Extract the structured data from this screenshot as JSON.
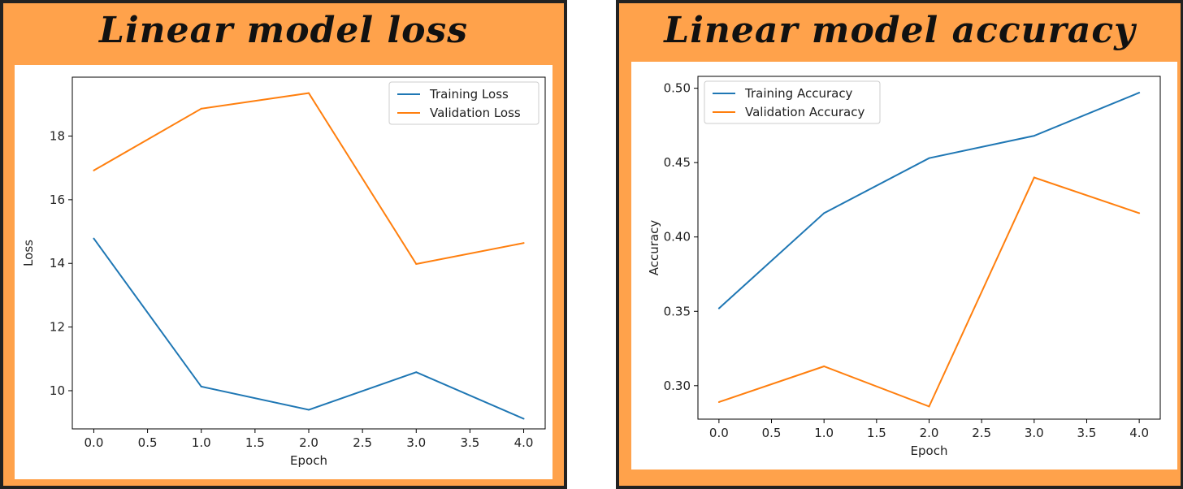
{
  "panels": [
    {
      "title": "Linear model loss"
    },
    {
      "title": "Linear model accuracy"
    }
  ],
  "colors": {
    "training": "#1f77b4",
    "validation": "#ff7f0e",
    "frame": "#ffa24b",
    "border": "#222222"
  },
  "chart_data": [
    {
      "type": "line",
      "title": "",
      "xlabel": "Epoch",
      "ylabel": "Loss",
      "x": [
        0,
        1,
        2,
        3,
        4
      ],
      "xticks": [
        "0.0",
        "0.5",
        "1.0",
        "1.5",
        "2.0",
        "2.5",
        "3.0",
        "3.5",
        "4.0"
      ],
      "yticks": [
        "10",
        "12",
        "14",
        "16",
        "18"
      ],
      "xlim": [
        -0.2,
        4.2
      ],
      "ylim": [
        8.8,
        19.85
      ],
      "grid": false,
      "legend_position": "top-right",
      "series": [
        {
          "name": "Training Loss",
          "values": [
            14.78,
            10.13,
            9.4,
            10.58,
            9.12
          ]
        },
        {
          "name": "Validation Loss",
          "values": [
            16.92,
            18.86,
            19.35,
            13.98,
            14.64
          ]
        }
      ]
    },
    {
      "type": "line",
      "title": "",
      "xlabel": "Epoch",
      "ylabel": "Accuracy",
      "x": [
        0,
        1,
        2,
        3,
        4
      ],
      "xticks": [
        "0.0",
        "0.5",
        "1.0",
        "1.5",
        "2.0",
        "2.5",
        "3.0",
        "3.5",
        "4.0"
      ],
      "yticks": [
        "0.30",
        "0.35",
        "0.40",
        "0.45",
        "0.50"
      ],
      "xlim": [
        -0.2,
        4.2
      ],
      "ylim": [
        0.2775,
        0.508
      ],
      "grid": false,
      "legend_position": "top-left",
      "series": [
        {
          "name": "Training Accuracy",
          "values": [
            0.352,
            0.416,
            0.453,
            0.468,
            0.497
          ]
        },
        {
          "name": "Validation Accuracy",
          "values": [
            0.289,
            0.313,
            0.286,
            0.44,
            0.416
          ]
        }
      ]
    }
  ]
}
